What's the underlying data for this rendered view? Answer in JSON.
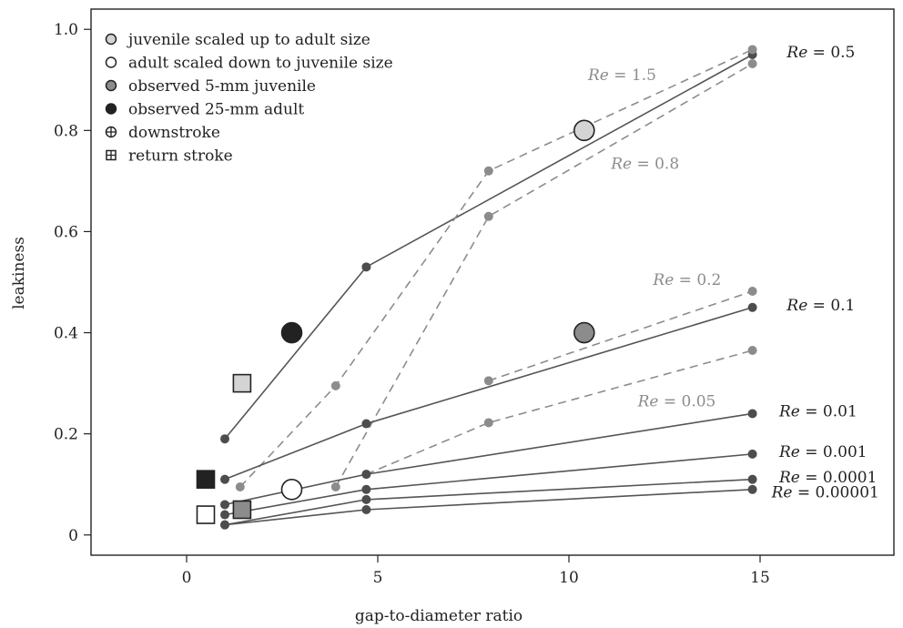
{
  "chart_data": {
    "type": "scatter",
    "title": "",
    "xlabel": "gap-to-diameter ratio",
    "ylabel": "leakiness",
    "xlim": [
      -2.5,
      18.5
    ],
    "ylim": [
      -0.04,
      1.04
    ],
    "xticks": [
      0,
      5,
      10,
      15
    ],
    "yticks": [
      0,
      0.2,
      0.4,
      0.6,
      0.8,
      1.0
    ],
    "xtick_labels": [
      "0",
      "5",
      "10",
      "15"
    ],
    "ytick_labels": [
      "0",
      "0.2",
      "0.4",
      "0.6",
      "0.8",
      "1.0"
    ],
    "grid": false,
    "legend_position": "top-left",
    "colors": {
      "solid_line": "#555555",
      "dashed_line": "#8c8c8c",
      "solid_point": "#4d4d4d",
      "dashed_point": "#8c8c8c",
      "dashed_label": "#8c8c8c",
      "juvenile_scaled_up": "#d4d4d4",
      "adult_scaled_down": "#ffffff",
      "observed_juvenile": "#8c8c8c",
      "observed_adult": "#222222"
    },
    "legend": [
      {
        "label": "juvenile scaled up to adult size",
        "marker": "circle",
        "fill": "#d4d4d4"
      },
      {
        "label": "adult scaled down to juvenile size",
        "marker": "circle",
        "fill": "#ffffff"
      },
      {
        "label": "observed 5-mm juvenile",
        "marker": "circle",
        "fill": "#8c8c8c"
      },
      {
        "label": "observed 25-mm adult",
        "marker": "circle",
        "fill": "#222222"
      },
      {
        "label": "downstroke",
        "marker": "circle-plus",
        "fill": "#ffffff"
      },
      {
        "label": "return stroke",
        "marker": "square-plus",
        "fill": "#ffffff"
      }
    ],
    "series": [
      {
        "label_prefix": "Re",
        "label_value": "= 0.5",
        "label_at": [
          15.7,
          0.955
        ],
        "style": "solid",
        "x": [
          1,
          4.7,
          14.8
        ],
        "y": [
          0.19,
          0.53,
          0.95
        ]
      },
      {
        "label_prefix": "Re",
        "label_value": "= 1.5",
        "label_at": [
          10.5,
          0.91
        ],
        "style": "dashed",
        "x": [
          1.4,
          3.9,
          7.9,
          14.8
        ],
        "y": [
          0.095,
          0.295,
          0.72,
          0.96
        ]
      },
      {
        "label_prefix": "Re",
        "label_value": "= 0.8",
        "label_at": [
          11.1,
          0.735
        ],
        "style": "dashed",
        "x": [
          3.9,
          7.9,
          14.8
        ],
        "y": [
          0.095,
          0.63,
          0.932
        ]
      },
      {
        "label_prefix": "Re",
        "label_value": "= 0.1",
        "label_at": [
          15.7,
          0.455
        ],
        "style": "solid",
        "x": [
          1,
          4.7,
          14.8
        ],
        "y": [
          0.11,
          0.22,
          0.45
        ]
      },
      {
        "label_prefix": "Re",
        "label_value": "= 0.2",
        "label_at": [
          12.2,
          0.505
        ],
        "style": "dashed",
        "x": [
          7.9,
          14.8
        ],
        "y": [
          0.305,
          0.482
        ]
      },
      {
        "label_prefix": "Re",
        "label_value": "= 0.05",
        "label_at": [
          11.8,
          0.265
        ],
        "style": "dashed",
        "x": [
          4.7,
          7.9,
          14.8
        ],
        "y": [
          0.12,
          0.222,
          0.365
        ]
      },
      {
        "label_prefix": "Re",
        "label_value": "= 0.01",
        "label_at": [
          15.5,
          0.245
        ],
        "style": "solid",
        "x": [
          1,
          4.7,
          14.8
        ],
        "y": [
          0.06,
          0.12,
          0.24
        ]
      },
      {
        "label_prefix": "Re",
        "label_value": "= 0.001",
        "label_at": [
          15.5,
          0.165
        ],
        "style": "solid",
        "x": [
          1,
          4.7,
          14.8
        ],
        "y": [
          0.04,
          0.09,
          0.16
        ]
      },
      {
        "label_prefix": "Re",
        "label_value": "= 0.0001",
        "label_at": [
          15.5,
          0.115
        ],
        "style": "solid",
        "x": [
          1,
          4.7,
          14.8
        ],
        "y": [
          0.02,
          0.07,
          0.11
        ]
      },
      {
        "label_prefix": "Re",
        "label_value": "= 0.00001",
        "label_at": [
          15.3,
          0.085
        ],
        "style": "solid",
        "x": [
          1,
          4.7,
          14.8
        ],
        "y": [
          0.02,
          0.05,
          0.09
        ]
      }
    ],
    "markers": [
      {
        "group": "juvenile scaled up to adult size",
        "stroke_type": "downstroke",
        "shape": "circle",
        "x": 10.4,
        "y": 0.8,
        "fill": "#d4d4d4"
      },
      {
        "group": "juvenile scaled up to adult size",
        "stroke_type": "return stroke",
        "shape": "square",
        "x": 1.45,
        "y": 0.3,
        "fill": "#d4d4d4"
      },
      {
        "group": "adult scaled down to juvenile size",
        "stroke_type": "downstroke",
        "shape": "circle",
        "x": 2.75,
        "y": 0.09,
        "fill": "#ffffff"
      },
      {
        "group": "adult scaled down to juvenile size",
        "stroke_type": "return stroke",
        "shape": "square",
        "x": 0.5,
        "y": 0.04,
        "fill": "#ffffff"
      },
      {
        "group": "observed 5-mm juvenile",
        "stroke_type": "downstroke",
        "shape": "circle",
        "x": 10.4,
        "y": 0.4,
        "fill": "#8c8c8c"
      },
      {
        "group": "observed 5-mm juvenile",
        "stroke_type": "return stroke",
        "shape": "square",
        "x": 1.45,
        "y": 0.05,
        "fill": "#8c8c8c"
      },
      {
        "group": "observed 25-mm adult",
        "stroke_type": "downstroke",
        "shape": "circle",
        "x": 2.75,
        "y": 0.4,
        "fill": "#222222"
      },
      {
        "group": "observed 25-mm adult",
        "stroke_type": "return stroke",
        "shape": "square",
        "x": 0.5,
        "y": 0.11,
        "fill": "#222222"
      }
    ]
  }
}
